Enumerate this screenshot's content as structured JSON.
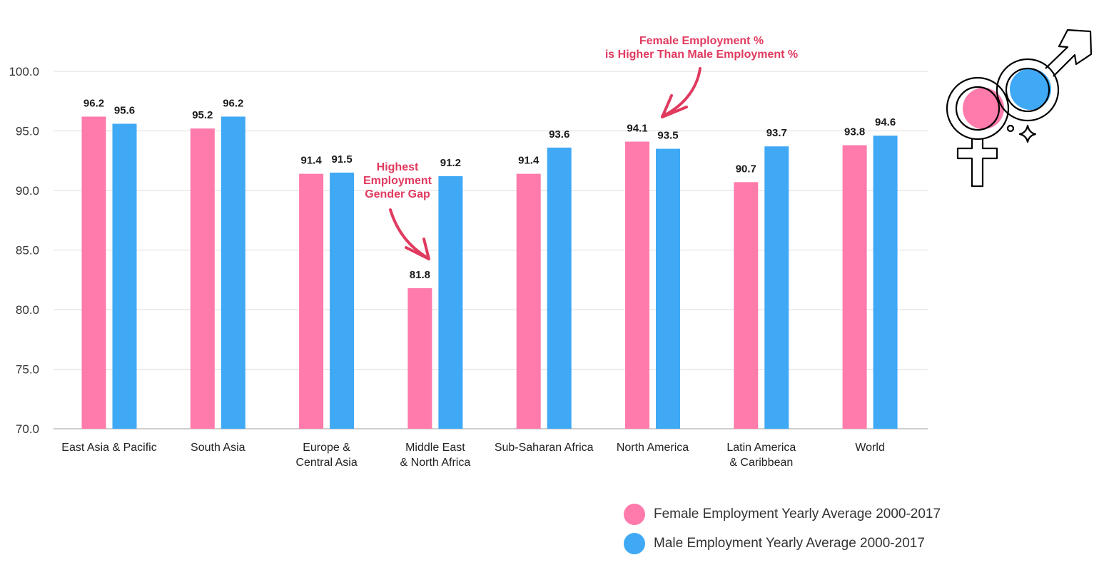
{
  "chart_data": {
    "type": "bar",
    "categories": [
      [
        "East Asia & Pacific"
      ],
      [
        "South Asia"
      ],
      [
        "Europe &",
        "Central Asia"
      ],
      [
        "Middle East",
        "& North Africa"
      ],
      [
        "Sub-Saharan Africa"
      ],
      [
        "North America"
      ],
      [
        "Latin America",
        "& Caribbean"
      ],
      [
        "World"
      ]
    ],
    "series": [
      {
        "name": "Female Employment Yearly Average 2000-2017",
        "color": "#FF7BAC",
        "values": [
          96.2,
          95.2,
          91.4,
          81.8,
          91.4,
          94.1,
          90.7,
          93.8
        ]
      },
      {
        "name": "Male Employment Yearly Average 2000-2017",
        "color": "#3FA9F5",
        "values": [
          95.6,
          96.2,
          91.5,
          91.2,
          93.6,
          93.5,
          93.7,
          94.6
        ]
      }
    ],
    "ylim": [
      70,
      100
    ],
    "yticks": [
      "70.0",
      "75.0",
      "80.0",
      "85.0",
      "90.0",
      "95.0",
      "100.0"
    ],
    "grid": true,
    "legend_position": "bottom-right",
    "annotations": [
      {
        "lines": [
          "Highest",
          "Employment",
          "Gender Gap"
        ],
        "color": "#E03A5F",
        "target": "Middle East & North Africa"
      },
      {
        "lines": [
          "Female Employment %",
          "is Higher Than Male Employment %"
        ],
        "color": "#E03A5F",
        "target": "North America"
      }
    ],
    "icon": "gender-symbols-icon"
  }
}
